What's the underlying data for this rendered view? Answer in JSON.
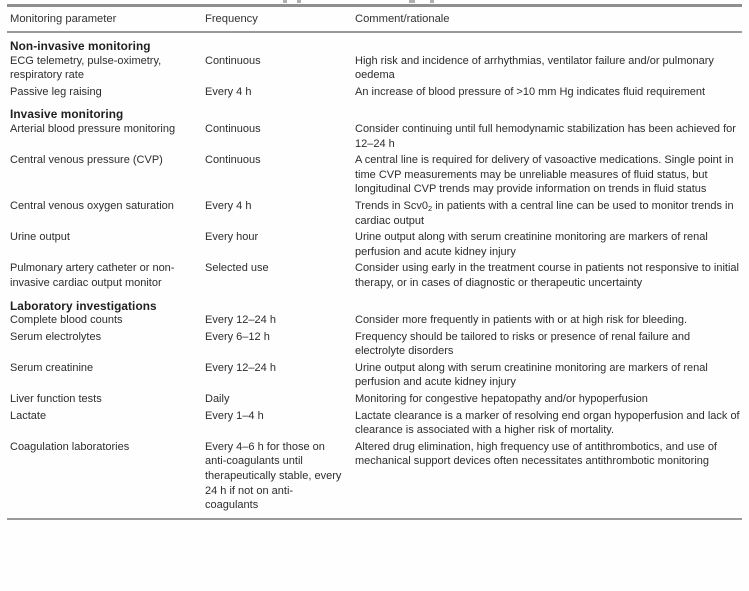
{
  "table": {
    "headers": [
      "Monitoring parameter",
      "Frequency",
      "Comment/rationale"
    ],
    "sections": [
      {
        "title": "Non-invasive monitoring",
        "rows": [
          {
            "parameter": "ECG telemetry, pulse-oximetry, respiratory rate",
            "frequency": "Continuous",
            "comment": "High risk and incidence of arrhythmias, ventilator failure and/or pulmonary oedema"
          },
          {
            "parameter": "Passive leg raising",
            "frequency": "Every 4 h",
            "comment": "An increase of blood pressure of >10 mm Hg indicates fluid requirement"
          }
        ]
      },
      {
        "title": "Invasive monitoring",
        "rows": [
          {
            "parameter": "Arterial blood pressure monitoring",
            "frequency": "Continuous",
            "comment": "Consider continuing until full hemodynamic stabilization has been achieved for 12–24 h"
          },
          {
            "parameter": "Central venous pressure (CVP)",
            "frequency": "Continuous",
            "comment": "A central line is required for delivery of vasoactive medications. Single point in time CVP measurements may be unreliable measures of fluid status, but longitudinal CVP trends may provide information on trends in fluid status"
          },
          {
            "parameter": "Central venous oxygen saturation",
            "frequency": "Every 4 h",
            "comment_parts": {
              "pre": "Trends in Scv0",
              "sub": "2",
              "post": " in patients with a central line can be used to monitor trends in cardiac output"
            }
          },
          {
            "parameter": "Urine output",
            "frequency": "Every hour",
            "comment": "Urine output along with serum creatinine monitoring are markers of renal perfusion and acute kidney injury"
          },
          {
            "parameter": "Pulmonary artery catheter or non-invasive cardiac output monitor",
            "frequency": "Selected use",
            "comment": "Consider using early in the treatment course in patients not responsive to initial therapy, or in cases of diagnostic or therapeutic uncertainty"
          }
        ]
      },
      {
        "title": "Laboratory investigations",
        "rows": [
          {
            "parameter": "Complete blood counts",
            "frequency": "Every 12–24 h",
            "comment": "Consider more frequently in patients with or at high risk for bleeding."
          },
          {
            "parameter": "Serum electrolytes",
            "frequency": "Every 6–12 h",
            "comment": "Frequency should be tailored to risks or presence of renal failure and electrolyte disorders"
          },
          {
            "parameter": "Serum creatinine",
            "frequency": "Every 12–24 h",
            "comment": "Urine output along with serum creatinine monitoring are markers of renal perfusion and acute kidney injury"
          },
          {
            "parameter": "Liver function tests",
            "frequency": "Daily",
            "comment": "Monitoring for congestive hepatopathy and/or hypoperfusion"
          },
          {
            "parameter": "Lactate",
            "frequency": "Every 1–4 h",
            "comment": "Lactate clearance is a marker of resolving end organ hypoperfusion and lack of clearance is associated with a higher risk of mortality."
          },
          {
            "parameter": "Coagulation laboratories",
            "frequency": "Every 4–6 h for those on anti-coagulants until therapeutically stable, every 24 h if not on anti-coagulants",
            "comment": "Altered drug elimination, high frequency use of antithrombotics, and use of mechanical support devices often necessitates antithrombotic monitoring"
          }
        ]
      }
    ]
  }
}
